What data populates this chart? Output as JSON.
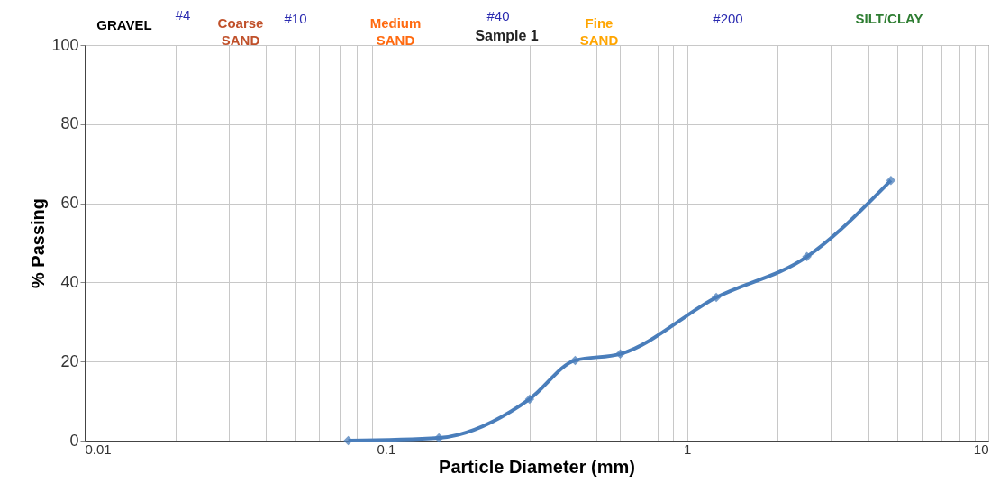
{
  "chart_data": {
    "type": "line",
    "title": "Sample 1",
    "xlabel": "Particle Diameter (mm)",
    "ylabel": "% Passing",
    "annotations": [
      "GRAVEL",
      "#4",
      "Coarse\nSAND",
      "#10",
      "Medium\nSAND",
      "#40",
      "Fine\nSAND",
      "#200",
      "SILT/CLAY"
    ],
    "series": [
      {
        "color": "#4a7ebb",
        "x": [
          0.075,
          0.15,
          0.3,
          0.425,
          0.6,
          1.25,
          2.5,
          4.75
        ],
        "values": [
          0,
          0.7,
          10.5,
          20.3,
          21.9,
          36.2,
          46.5,
          65.8
        ]
      }
    ],
    "log": "x",
    "xlim": [
      0.01,
      10
    ],
    "ylim": [
      0,
      100
    ],
    "xticks": [
      0.01,
      {
        "value": 0.02,
        "label": null
      },
      {
        "value": 0.03,
        "label": null
      },
      {
        "value": 0.04,
        "label": null
      },
      {
        "value": 0.05,
        "label": null
      },
      {
        "value": 0.06,
        "label": null
      },
      {
        "value": 0.07,
        "label": null
      },
      {
        "value": 0.08,
        "label": null
      },
      {
        "value": 0.09,
        "label": null
      },
      0.1,
      {
        "value": 0.2,
        "label": null
      },
      {
        "value": 0.3,
        "label": null
      },
      {
        "value": 0.4,
        "label": null
      },
      {
        "value": 0.5,
        "label": null
      },
      {
        "value": 0.6,
        "label": null
      },
      {
        "value": 0.7,
        "label": null
      },
      {
        "value": 0.8,
        "label": null
      },
      {
        "value": 0.9,
        "label": null
      },
      1,
      {
        "value": 2,
        "label": null
      },
      {
        "value": 3,
        "label": null
      },
      {
        "value": 4,
        "label": null
      },
      {
        "value": 5,
        "label": null
      },
      {
        "value": 6,
        "label": null
      },
      {
        "value": 7,
        "label": null
      },
      {
        "value": 8,
        "label": null
      },
      {
        "value": 9,
        "label": null
      },
      10
    ],
    "yticks": [
      0,
      20,
      40,
      60,
      80,
      100
    ],
    "grid": true,
    "marker": "diamond",
    "line_style": "solid"
  }
}
